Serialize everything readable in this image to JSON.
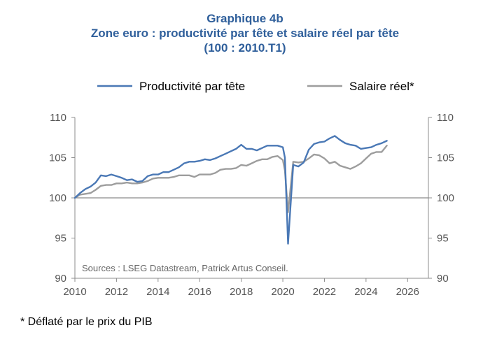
{
  "title": {
    "line1": "Graphique 4b",
    "line2": "Zone euro : productivité par tête et salaire réel par tête",
    "line3": "(100 : 2010.T1)"
  },
  "footnote": "* Déflaté par le prix du PIB",
  "colors": {
    "productivity": "#4a78b5",
    "wage": "#9d9d9d",
    "axis": "#8c8c8c",
    "title": "#2f5f9b"
  },
  "chart_data": {
    "type": "line",
    "source": "Sources : LSEG Datastream, Patrick Artus Conseil.",
    "xlim": [
      2010,
      2027
    ],
    "ylim": [
      90,
      110
    ],
    "x_ticks": [
      "2010",
      "2012",
      "2014",
      "2016",
      "2018",
      "2020",
      "2022",
      "2024",
      "2026"
    ],
    "y_ticks": [
      "90",
      "95",
      "100",
      "105",
      "110"
    ],
    "reference_line": 100,
    "legend": {
      "position": "top"
    },
    "grid": false,
    "series": [
      {
        "name": "Productivité par tête",
        "color": "#4a78b5",
        "points": [
          [
            2010.0,
            100.0
          ],
          [
            2010.25,
            100.6
          ],
          [
            2010.5,
            101.1
          ],
          [
            2010.75,
            101.4
          ],
          [
            2011.0,
            101.9
          ],
          [
            2011.25,
            102.8
          ],
          [
            2011.5,
            102.7
          ],
          [
            2011.75,
            102.9
          ],
          [
            2012.0,
            102.7
          ],
          [
            2012.25,
            102.5
          ],
          [
            2012.5,
            102.2
          ],
          [
            2012.75,
            102.3
          ],
          [
            2013.0,
            102.0
          ],
          [
            2013.25,
            102.1
          ],
          [
            2013.5,
            102.7
          ],
          [
            2013.75,
            102.9
          ],
          [
            2014.0,
            102.9
          ],
          [
            2014.25,
            103.2
          ],
          [
            2014.5,
            103.2
          ],
          [
            2014.75,
            103.5
          ],
          [
            2015.0,
            103.8
          ],
          [
            2015.25,
            104.3
          ],
          [
            2015.5,
            104.5
          ],
          [
            2015.75,
            104.5
          ],
          [
            2016.0,
            104.6
          ],
          [
            2016.25,
            104.8
          ],
          [
            2016.5,
            104.7
          ],
          [
            2016.75,
            104.9
          ],
          [
            2017.0,
            105.2
          ],
          [
            2017.25,
            105.5
          ],
          [
            2017.5,
            105.8
          ],
          [
            2017.75,
            106.1
          ],
          [
            2018.0,
            106.6
          ],
          [
            2018.25,
            106.1
          ],
          [
            2018.5,
            106.1
          ],
          [
            2018.75,
            105.9
          ],
          [
            2019.0,
            106.2
          ],
          [
            2019.25,
            106.5
          ],
          [
            2019.5,
            106.5
          ],
          [
            2019.75,
            106.5
          ],
          [
            2020.0,
            106.3
          ],
          [
            2020.1,
            105.0
          ],
          [
            2020.25,
            94.3
          ],
          [
            2020.5,
            104.1
          ],
          [
            2020.75,
            103.9
          ],
          [
            2021.0,
            104.4
          ],
          [
            2021.25,
            106.0
          ],
          [
            2021.5,
            106.7
          ],
          [
            2021.75,
            106.9
          ],
          [
            2022.0,
            107.0
          ],
          [
            2022.25,
            107.4
          ],
          [
            2022.5,
            107.7
          ],
          [
            2022.75,
            107.2
          ],
          [
            2023.0,
            106.8
          ],
          [
            2023.25,
            106.6
          ],
          [
            2023.5,
            106.5
          ],
          [
            2023.75,
            106.1
          ],
          [
            2024.0,
            106.2
          ],
          [
            2024.25,
            106.3
          ],
          [
            2024.5,
            106.6
          ],
          [
            2024.75,
            106.8
          ],
          [
            2025.0,
            107.1
          ]
        ]
      },
      {
        "name": "Salaire réel*",
        "color": "#9d9d9d",
        "points": [
          [
            2010.0,
            100.0
          ],
          [
            2010.25,
            100.4
          ],
          [
            2010.5,
            100.5
          ],
          [
            2010.75,
            100.6
          ],
          [
            2011.0,
            101.0
          ],
          [
            2011.25,
            101.5
          ],
          [
            2011.5,
            101.6
          ],
          [
            2011.75,
            101.6
          ],
          [
            2012.0,
            101.8
          ],
          [
            2012.25,
            101.8
          ],
          [
            2012.5,
            101.9
          ],
          [
            2012.75,
            101.8
          ],
          [
            2013.0,
            101.8
          ],
          [
            2013.25,
            101.9
          ],
          [
            2013.5,
            102.1
          ],
          [
            2013.75,
            102.4
          ],
          [
            2014.0,
            102.5
          ],
          [
            2014.25,
            102.5
          ],
          [
            2014.5,
            102.5
          ],
          [
            2014.75,
            102.6
          ],
          [
            2015.0,
            102.8
          ],
          [
            2015.25,
            102.8
          ],
          [
            2015.5,
            102.8
          ],
          [
            2015.75,
            102.6
          ],
          [
            2016.0,
            102.9
          ],
          [
            2016.25,
            102.9
          ],
          [
            2016.5,
            102.9
          ],
          [
            2016.75,
            103.1
          ],
          [
            2017.0,
            103.5
          ],
          [
            2017.25,
            103.6
          ],
          [
            2017.5,
            103.6
          ],
          [
            2017.75,
            103.7
          ],
          [
            2018.0,
            104.1
          ],
          [
            2018.25,
            104.0
          ],
          [
            2018.5,
            104.3
          ],
          [
            2018.75,
            104.6
          ],
          [
            2019.0,
            104.8
          ],
          [
            2019.25,
            104.8
          ],
          [
            2019.5,
            105.1
          ],
          [
            2019.75,
            105.2
          ],
          [
            2020.0,
            104.7
          ],
          [
            2020.1,
            103.4
          ],
          [
            2020.25,
            98.2
          ],
          [
            2020.5,
            104.5
          ],
          [
            2020.75,
            104.4
          ],
          [
            2021.0,
            104.5
          ],
          [
            2021.25,
            104.9
          ],
          [
            2021.5,
            105.4
          ],
          [
            2021.75,
            105.3
          ],
          [
            2022.0,
            104.9
          ],
          [
            2022.25,
            104.3
          ],
          [
            2022.5,
            104.5
          ],
          [
            2022.75,
            104.0
          ],
          [
            2023.0,
            103.8
          ],
          [
            2023.25,
            103.6
          ],
          [
            2023.5,
            103.9
          ],
          [
            2023.75,
            104.3
          ],
          [
            2024.0,
            104.9
          ],
          [
            2024.25,
            105.5
          ],
          [
            2024.5,
            105.7
          ],
          [
            2024.75,
            105.7
          ],
          [
            2025.0,
            106.5
          ]
        ]
      }
    ]
  }
}
